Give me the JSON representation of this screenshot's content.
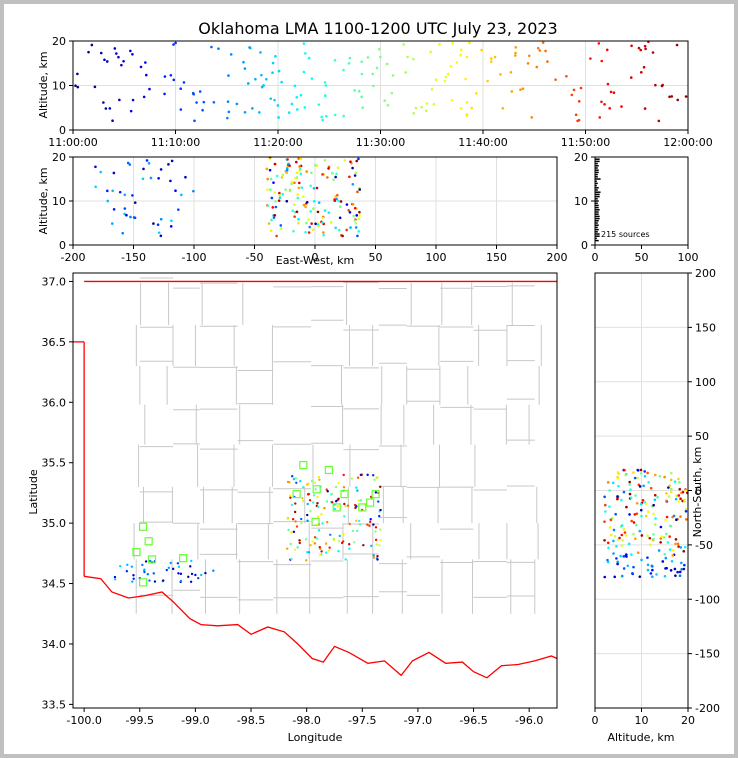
{
  "chart_data": [
    {
      "id": "time_height",
      "type": "scatter",
      "title": "Oklahoma LMA 1100-1200 UTC July 23, 2023",
      "xlabel": "",
      "ylabel": "Altitude, km",
      "xlim_minutes": [
        0,
        60
      ],
      "ylim": [
        0,
        20
      ],
      "xtick_labels": [
        "11:00:00",
        "11:10:00",
        "11:20:00",
        "11:30:00",
        "11:40:00",
        "11:50:00",
        "12:00:00"
      ],
      "ytick_labels": [
        "0",
        "10",
        "20"
      ],
      "color_by": "time",
      "grid": true
    },
    {
      "id": "ew_height",
      "type": "scatter",
      "xlabel": "East-West, km",
      "ylabel": "Altitude, km",
      "xlim": [
        -200,
        200
      ],
      "ylim": [
        0,
        20
      ],
      "xtick_labels": [
        "-200",
        "-150",
        "-100",
        "-50",
        "0",
        "50",
        "100",
        "150",
        "200"
      ],
      "ytick_labels": [
        "0",
        "10",
        "20"
      ],
      "grid": true
    },
    {
      "id": "alt_histogram",
      "type": "bar",
      "xlim": [
        0,
        100
      ],
      "ylim": [
        0,
        20
      ],
      "xtick_labels": [
        "0",
        "50",
        "100"
      ],
      "ytick_labels": [
        "0",
        "10",
        "20"
      ],
      "annotation": "215 sources"
    },
    {
      "id": "plan_view",
      "type": "scatter",
      "xlabel": "Longitude",
      "ylabel": "Latitude",
      "xlim": [
        -100.1,
        -95.75
      ],
      "ylim": [
        33.47,
        37.07
      ],
      "xtick_labels": [
        "-100.0",
        "-99.5",
        "-99.0",
        "-98.5",
        "-98.0",
        "-97.5",
        "-97.0",
        "-96.5",
        "-96.0"
      ],
      "ytick_labels": [
        "33.5",
        "34.0",
        "34.5",
        "35.0",
        "35.5",
        "36.0",
        "36.5",
        "37.0"
      ],
      "stations_color": "#66ff33",
      "stations": [
        [
          -99.47,
          34.97
        ],
        [
          -99.42,
          34.85
        ],
        [
          -99.53,
          34.76
        ],
        [
          -99.39,
          34.7
        ],
        [
          -99.47,
          34.51
        ],
        [
          -99.11,
          34.71
        ],
        [
          -98.09,
          35.24
        ],
        [
          -98.03,
          35.48
        ],
        [
          -97.91,
          35.28
        ],
        [
          -97.92,
          35.01
        ],
        [
          -97.8,
          35.44
        ],
        [
          -97.66,
          35.24
        ],
        [
          -97.73,
          35.13
        ],
        [
          -97.5,
          35.13
        ],
        [
          -97.43,
          35.17
        ],
        [
          -97.38,
          35.24
        ]
      ],
      "border_color": "#ff0000",
      "county_color": "#c8c8c8"
    },
    {
      "id": "ns_height",
      "type": "scatter",
      "xlabel": "Altitude, km",
      "ylabel": "North-South, km",
      "xlim": [
        0,
        20
      ],
      "ylim": [
        -200,
        200
      ],
      "xtick_labels": [
        "0",
        "10",
        "20"
      ],
      "ytick_labels": [
        "-200",
        "-150",
        "-100",
        "-50",
        "0",
        "50",
        "100",
        "150",
        "200"
      ]
    }
  ]
}
